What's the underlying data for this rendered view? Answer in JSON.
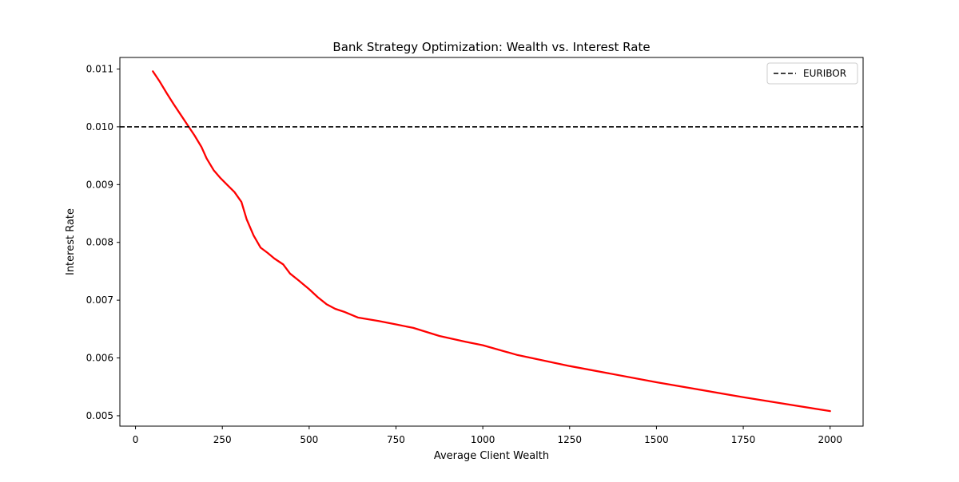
{
  "chart_data": {
    "type": "line",
    "title": "Bank Strategy Optimization: Wealth vs. Interest Rate",
    "xlabel": "Average Client Wealth",
    "ylabel": "Interest Rate",
    "xlim": [
      -45,
      2095
    ],
    "ylim": [
      0.00482,
      0.0112
    ],
    "xticks": [
      0,
      250,
      500,
      750,
      1000,
      1250,
      1500,
      1750,
      2000
    ],
    "xtick_labels": [
      "0",
      "250",
      "500",
      "750",
      "1000",
      "1250",
      "1500",
      "1750",
      "2000"
    ],
    "yticks": [
      0.005,
      0.006,
      0.007,
      0.008,
      0.009,
      0.01,
      0.011
    ],
    "ytick_labels": [
      "0.005",
      "0.006",
      "0.007",
      "0.008",
      "0.009",
      "0.010",
      "0.011"
    ],
    "grid": false,
    "legend": {
      "placement": "top-right",
      "entries": [
        "EURIBOR"
      ]
    },
    "series": [
      {
        "color": "#ff0000",
        "line_style": "solid",
        "x": [
          50,
          70,
          90,
          110,
          130,
          150,
          170,
          190,
          205,
          225,
          245,
          265,
          285,
          305,
          320,
          340,
          360,
          380,
          400,
          425,
          445,
          470,
          500,
          525,
          550,
          575,
          600,
          640,
          700,
          750,
          800,
          875,
          950,
          1000,
          1100,
          1250,
          1500,
          1750,
          2000
        ],
        "y": [
          0.01096,
          0.01078,
          0.01058,
          0.01039,
          0.01021,
          0.01003,
          0.00985,
          0.00965,
          0.00945,
          0.00925,
          0.00911,
          0.00899,
          0.00887,
          0.0087,
          0.0084,
          0.00812,
          0.00791,
          0.00782,
          0.00772,
          0.00762,
          0.00746,
          0.00734,
          0.00719,
          0.00705,
          0.00693,
          0.00685,
          0.0068,
          0.0067,
          0.00664,
          0.00658,
          0.00652,
          0.00638,
          0.00628,
          0.00622,
          0.00605,
          0.00586,
          0.00558,
          0.00532,
          0.00508
        ]
      },
      {
        "name": "EURIBOR",
        "color": "#000000",
        "line_style": "dashed",
        "y_constant": 0.01
      }
    ]
  }
}
